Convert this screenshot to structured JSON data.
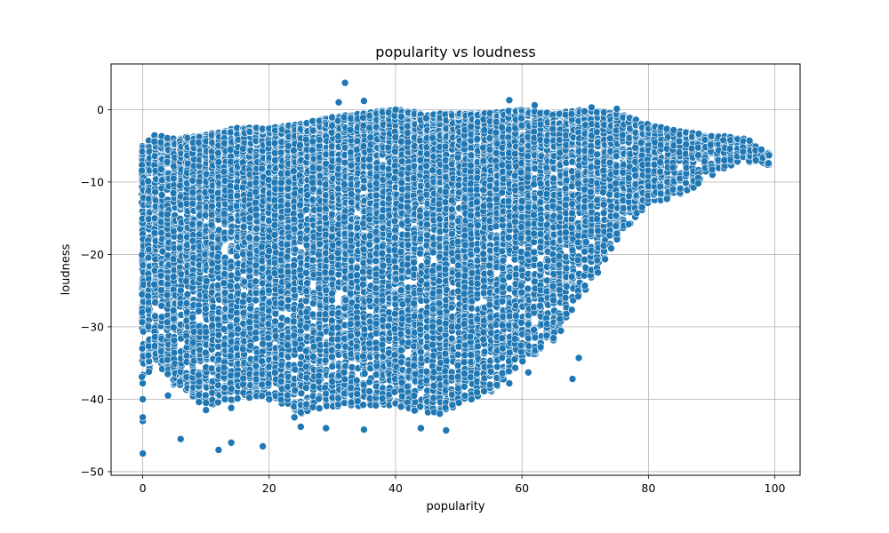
{
  "colors": {
    "marker": "#1f77b4",
    "marker_edge": "#ffffff",
    "grid": "#b0b0b0",
    "axes": "#000000"
  },
  "chart_data": {
    "type": "scatter",
    "title": "popularity vs loudness",
    "xlabel": "popularity",
    "ylabel": "loudness",
    "xlim": [
      -5,
      104
    ],
    "ylim": [
      -50.5,
      6.3
    ],
    "xticks": [
      0,
      20,
      40,
      60,
      80,
      100
    ],
    "yticks": [
      -50,
      -40,
      -30,
      -20,
      -10,
      0
    ],
    "grid": true,
    "legend": "none",
    "envelope": {
      "description": "dense point cloud; per popularity bin the approximate min and max loudness observed",
      "popularity": [
        0,
        2,
        5,
        10,
        15,
        20,
        25,
        30,
        35,
        40,
        45,
        50,
        55,
        60,
        65,
        70,
        75,
        80,
        85,
        90,
        95,
        99
      ],
      "loudness_min": [
        -38,
        -35,
        -38,
        -41,
        -40,
        -40,
        -42,
        -41,
        -41,
        -41,
        -42,
        -41,
        -39,
        -35,
        -32,
        -25,
        -18,
        -13,
        -12,
        -9,
        -7,
        -8
      ],
      "loudness_max": [
        -5,
        -3.5,
        -4,
        -3.5,
        -2.5,
        -2.5,
        -2,
        -1,
        -0.5,
        0,
        -0.5,
        -0.5,
        -0.5,
        0,
        -0.5,
        0,
        -0.5,
        -2,
        -3,
        -3.5,
        -4,
        -6
      ]
    },
    "points": [
      {
        "x": 0,
        "y": -47.5
      },
      {
        "x": 0,
        "y": -43
      },
      {
        "x": 0,
        "y": -42.5
      },
      {
        "x": 0,
        "y": -40
      },
      {
        "x": 4,
        "y": -39.5
      },
      {
        "x": 6,
        "y": -45.5
      },
      {
        "x": 10,
        "y": -40.5
      },
      {
        "x": 10,
        "y": -41.5
      },
      {
        "x": 12,
        "y": -47
      },
      {
        "x": 14,
        "y": -46
      },
      {
        "x": 14,
        "y": -41.2
      },
      {
        "x": 19,
        "y": -46.5
      },
      {
        "x": 20,
        "y": -40
      },
      {
        "x": 24,
        "y": -42.5
      },
      {
        "x": 25,
        "y": -43.8
      },
      {
        "x": 29,
        "y": -44
      },
      {
        "x": 31,
        "y": 1
      },
      {
        "x": 32,
        "y": 3.7
      },
      {
        "x": 35,
        "y": -44.2
      },
      {
        "x": 35,
        "y": 1.2
      },
      {
        "x": 40,
        "y": 0
      },
      {
        "x": 44,
        "y": -44
      },
      {
        "x": 47,
        "y": -42
      },
      {
        "x": 48,
        "y": -44.3
      },
      {
        "x": 49,
        "y": -40.8
      },
      {
        "x": 52,
        "y": -40
      },
      {
        "x": 54,
        "y": -38.9
      },
      {
        "x": 58,
        "y": 1.3
      },
      {
        "x": 58,
        "y": -37.8
      },
      {
        "x": 62,
        "y": 0.6
      },
      {
        "x": 61,
        "y": -36.3
      },
      {
        "x": 68,
        "y": -37.2
      },
      {
        "x": 69,
        "y": -34.3
      },
      {
        "x": 71,
        "y": 0.3
      },
      {
        "x": 72,
        "y": -22.5
      },
      {
        "x": 75,
        "y": 0.1
      },
      {
        "x": 92,
        "y": -7
      },
      {
        "x": 96,
        "y": -4.3
      },
      {
        "x": 97,
        "y": -7
      },
      {
        "x": 99,
        "y": -7.4
      }
    ]
  }
}
